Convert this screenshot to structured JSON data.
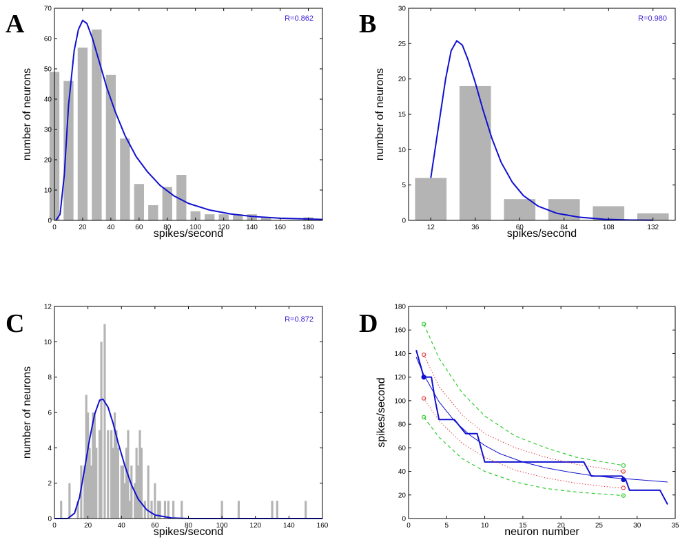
{
  "chart_data": [
    {
      "panel": "A",
      "type": "bar",
      "annotation": "R=0.862",
      "xlabel": "spikes/second",
      "ylabel": "number of neurons",
      "xlim": [
        0,
        190
      ],
      "ylim": [
        0,
        70
      ],
      "xticks": [
        0,
        20,
        40,
        60,
        80,
        100,
        120,
        140,
        160,
        180
      ],
      "yticks": [
        0,
        10,
        20,
        30,
        40,
        50,
        60,
        70
      ],
      "bar_width": 7,
      "bars": [
        [
          0,
          49
        ],
        [
          10,
          46
        ],
        [
          20,
          57
        ],
        [
          30,
          63
        ],
        [
          40,
          48
        ],
        [
          50,
          27
        ],
        [
          60,
          12
        ],
        [
          70,
          5
        ],
        [
          80,
          11
        ],
        [
          90,
          15
        ],
        [
          100,
          3
        ],
        [
          110,
          2
        ],
        [
          120,
          2
        ],
        [
          130,
          2
        ],
        [
          140,
          2
        ],
        [
          150,
          1
        ],
        [
          180,
          1
        ]
      ],
      "fit": [
        [
          1,
          0
        ],
        [
          4,
          2
        ],
        [
          7,
          15
        ],
        [
          10,
          38
        ],
        [
          14,
          56
        ],
        [
          17,
          63
        ],
        [
          20,
          66
        ],
        [
          23,
          65
        ],
        [
          27,
          60
        ],
        [
          32,
          52
        ],
        [
          37,
          44
        ],
        [
          43,
          36
        ],
        [
          50,
          28
        ],
        [
          58,
          21
        ],
        [
          66,
          16
        ],
        [
          75,
          11.5
        ],
        [
          85,
          8
        ],
        [
          95,
          5.6
        ],
        [
          110,
          3.4
        ],
        [
          125,
          2.1
        ],
        [
          140,
          1.3
        ],
        [
          160,
          0.7
        ],
        [
          190,
          0.3
        ]
      ]
    },
    {
      "panel": "B",
      "type": "bar",
      "annotation": "R=0.980",
      "xlabel": "spikes/second",
      "ylabel": "number of neurons",
      "xlim": [
        0,
        144
      ],
      "ylim": [
        0,
        30
      ],
      "xticks": [
        12,
        36,
        60,
        84,
        108,
        132
      ],
      "yticks": [
        0,
        5,
        10,
        15,
        20,
        25,
        30
      ],
      "bar_width": 17,
      "bars": [
        [
          12,
          6
        ],
        [
          36,
          19
        ],
        [
          60,
          3
        ],
        [
          84,
          3
        ],
        [
          108,
          2
        ],
        [
          132,
          1
        ]
      ],
      "fit": [
        [
          12,
          6
        ],
        [
          16,
          13
        ],
        [
          20,
          20
        ],
        [
          23,
          24
        ],
        [
          26,
          25.4
        ],
        [
          29,
          24.8
        ],
        [
          32,
          22.8
        ],
        [
          36,
          19.5
        ],
        [
          40,
          15.8
        ],
        [
          45,
          11.6
        ],
        [
          50,
          8.2
        ],
        [
          56,
          5.4
        ],
        [
          62,
          3.5
        ],
        [
          70,
          2.0
        ],
        [
          80,
          1.0
        ],
        [
          92,
          0.45
        ],
        [
          106,
          0.15
        ],
        [
          120,
          0.05
        ],
        [
          132,
          0.02
        ]
      ]
    },
    {
      "panel": "C",
      "type": "bar",
      "annotation": "R=0.872",
      "xlabel": "spikes/second",
      "ylabel": "number of neurons",
      "xlim": [
        0,
        160
      ],
      "ylim": [
        0,
        12
      ],
      "xticks": [
        0,
        20,
        40,
        60,
        80,
        100,
        120,
        140,
        160
      ],
      "yticks": [
        0,
        2,
        4,
        6,
        8,
        10,
        12
      ],
      "bar_width": 1.3,
      "bars": [
        [
          4,
          1
        ],
        [
          9,
          2
        ],
        [
          14,
          1
        ],
        [
          16,
          3
        ],
        [
          18,
          3
        ],
        [
          19,
          7
        ],
        [
          20,
          6
        ],
        [
          21,
          4
        ],
        [
          22,
          3
        ],
        [
          23,
          6
        ],
        [
          24,
          6
        ],
        [
          25,
          4
        ],
        [
          27,
          5
        ],
        [
          28,
          10
        ],
        [
          30,
          11
        ],
        [
          32,
          5
        ],
        [
          34,
          5
        ],
        [
          35,
          4
        ],
        [
          36,
          6
        ],
        [
          37,
          5
        ],
        [
          38,
          4
        ],
        [
          40,
          3
        ],
        [
          41,
          3
        ],
        [
          42,
          2
        ],
        [
          43,
          4
        ],
        [
          44,
          5
        ],
        [
          45,
          1
        ],
        [
          46,
          3
        ],
        [
          48,
          2
        ],
        [
          49,
          4
        ],
        [
          50,
          3
        ],
        [
          51,
          5
        ],
        [
          52,
          4
        ],
        [
          54,
          1
        ],
        [
          56,
          3
        ],
        [
          58,
          1
        ],
        [
          60,
          2
        ],
        [
          62,
          1
        ],
        [
          63,
          1
        ],
        [
          66,
          1
        ],
        [
          68,
          1
        ],
        [
          71,
          1
        ],
        [
          76,
          1
        ],
        [
          100,
          1
        ],
        [
          110,
          1
        ],
        [
          130,
          1
        ],
        [
          133,
          1
        ],
        [
          150,
          1
        ]
      ],
      "fit": [
        [
          0,
          0
        ],
        [
          8,
          0
        ],
        [
          12,
          0.3
        ],
        [
          15,
          1.2
        ],
        [
          18,
          2.8
        ],
        [
          21,
          4.5
        ],
        [
          24,
          5.9
        ],
        [
          27,
          6.7
        ],
        [
          29,
          6.75
        ],
        [
          32,
          6.3
        ],
        [
          35,
          5.4
        ],
        [
          38,
          4.3
        ],
        [
          42,
          3.0
        ],
        [
          46,
          1.9
        ],
        [
          50,
          1.1
        ],
        [
          55,
          0.5
        ],
        [
          60,
          0.2
        ],
        [
          70,
          0.03
        ],
        [
          80,
          0
        ],
        [
          160,
          0
        ]
      ]
    },
    {
      "panel": "D",
      "type": "line",
      "xlabel": "neuron number",
      "ylabel": "spikes/second",
      "xlim": [
        0,
        35
      ],
      "ylim": [
        0,
        180
      ],
      "xticks": [
        0,
        5,
        10,
        15,
        20,
        25,
        30,
        35
      ],
      "yticks": [
        0,
        20,
        40,
        60,
        80,
        100,
        120,
        140,
        160,
        180
      ],
      "series": [
        {
          "style": "step",
          "color": "#1010d0",
          "points": [
            [
              1,
              143
            ],
            [
              2,
              120
            ],
            [
              3,
              120
            ],
            [
              3.5,
              100
            ],
            [
              4,
              84
            ],
            [
              6,
              84
            ],
            [
              7.5,
              72
            ],
            [
              9,
              72
            ],
            [
              10,
              48
            ],
            [
              23,
              48
            ],
            [
              24,
              36
            ],
            [
              28,
              36
            ],
            [
              28.5,
              33
            ],
            [
              29,
              24
            ],
            [
              33,
              24
            ],
            [
              34,
              12
            ]
          ]
        },
        {
          "style": "thin",
          "color": "#1010d0",
          "points": [
            [
              1,
              137
            ],
            [
              2,
              122
            ],
            [
              4,
              99
            ],
            [
              6,
              83
            ],
            [
              8,
              71
            ],
            [
              10,
              62
            ],
            [
              12,
              55
            ],
            [
              15,
              48
            ],
            [
              18,
              43
            ],
            [
              21,
              39.5
            ],
            [
              24,
              36.5
            ],
            [
              27,
              34.5
            ],
            [
              30,
              33
            ],
            [
              34,
              31
            ]
          ]
        },
        {
          "style": "dotted",
          "color": "#e04040",
          "points": [
            [
              2,
              139
            ],
            [
              4,
              112
            ],
            [
              7,
              88
            ],
            [
              10,
              72
            ],
            [
              14,
              60
            ],
            [
              18,
              52
            ],
            [
              22,
              46
            ],
            [
              26,
              42
            ],
            [
              28.2,
              40
            ]
          ]
        },
        {
          "style": "dotted",
          "color": "#e04040",
          "points": [
            [
              2,
              102
            ],
            [
              4,
              83
            ],
            [
              7,
              64
            ],
            [
              10,
              52
            ],
            [
              14,
              41
            ],
            [
              18,
              34.5
            ],
            [
              22,
              30
            ],
            [
              26,
              27
            ],
            [
              28.2,
              26
            ]
          ]
        },
        {
          "style": "dashed",
          "color": "#30cc30",
          "points": [
            [
              2,
              165
            ],
            [
              4,
              136
            ],
            [
              7,
              107
            ],
            [
              10,
              87
            ],
            [
              14,
              70
            ],
            [
              18,
              60
            ],
            [
              22,
              52
            ],
            [
              26,
              47.5
            ],
            [
              28.2,
              45
            ]
          ]
        },
        {
          "style": "dashed",
          "color": "#30cc30",
          "points": [
            [
              2,
              86
            ],
            [
              4,
              69
            ],
            [
              7,
              51
            ],
            [
              10,
              40
            ],
            [
              14,
              31
            ],
            [
              18,
              25.5
            ],
            [
              22,
              22.5
            ],
            [
              26,
              20.5
            ],
            [
              28.2,
              19.5
            ]
          ]
        }
      ],
      "markers": [
        {
          "x": 2,
          "y": 120,
          "color": "#1010d0",
          "filled": true
        },
        {
          "x": 28.2,
          "y": 33,
          "color": "#1010d0",
          "filled": true
        },
        {
          "x": 2,
          "y": 139,
          "color": "#e04040",
          "filled": false
        },
        {
          "x": 2,
          "y": 102,
          "color": "#e04040",
          "filled": false
        },
        {
          "x": 28.2,
          "y": 40,
          "color": "#e04040",
          "filled": false
        },
        {
          "x": 28.2,
          "y": 26,
          "color": "#e04040",
          "filled": false
        },
        {
          "x": 2,
          "y": 165,
          "color": "#30cc30",
          "filled": false
        },
        {
          "x": 2,
          "y": 86,
          "color": "#30cc30",
          "filled": false
        },
        {
          "x": 28.2,
          "y": 45,
          "color": "#30cc30",
          "filled": false
        },
        {
          "x": 28.2,
          "y": 19.5,
          "color": "#30cc30",
          "filled": false
        }
      ]
    }
  ],
  "colors": {
    "bar": "#b4b4b4",
    "fit": "#1010d0",
    "annotation": "#3a1fd8"
  }
}
